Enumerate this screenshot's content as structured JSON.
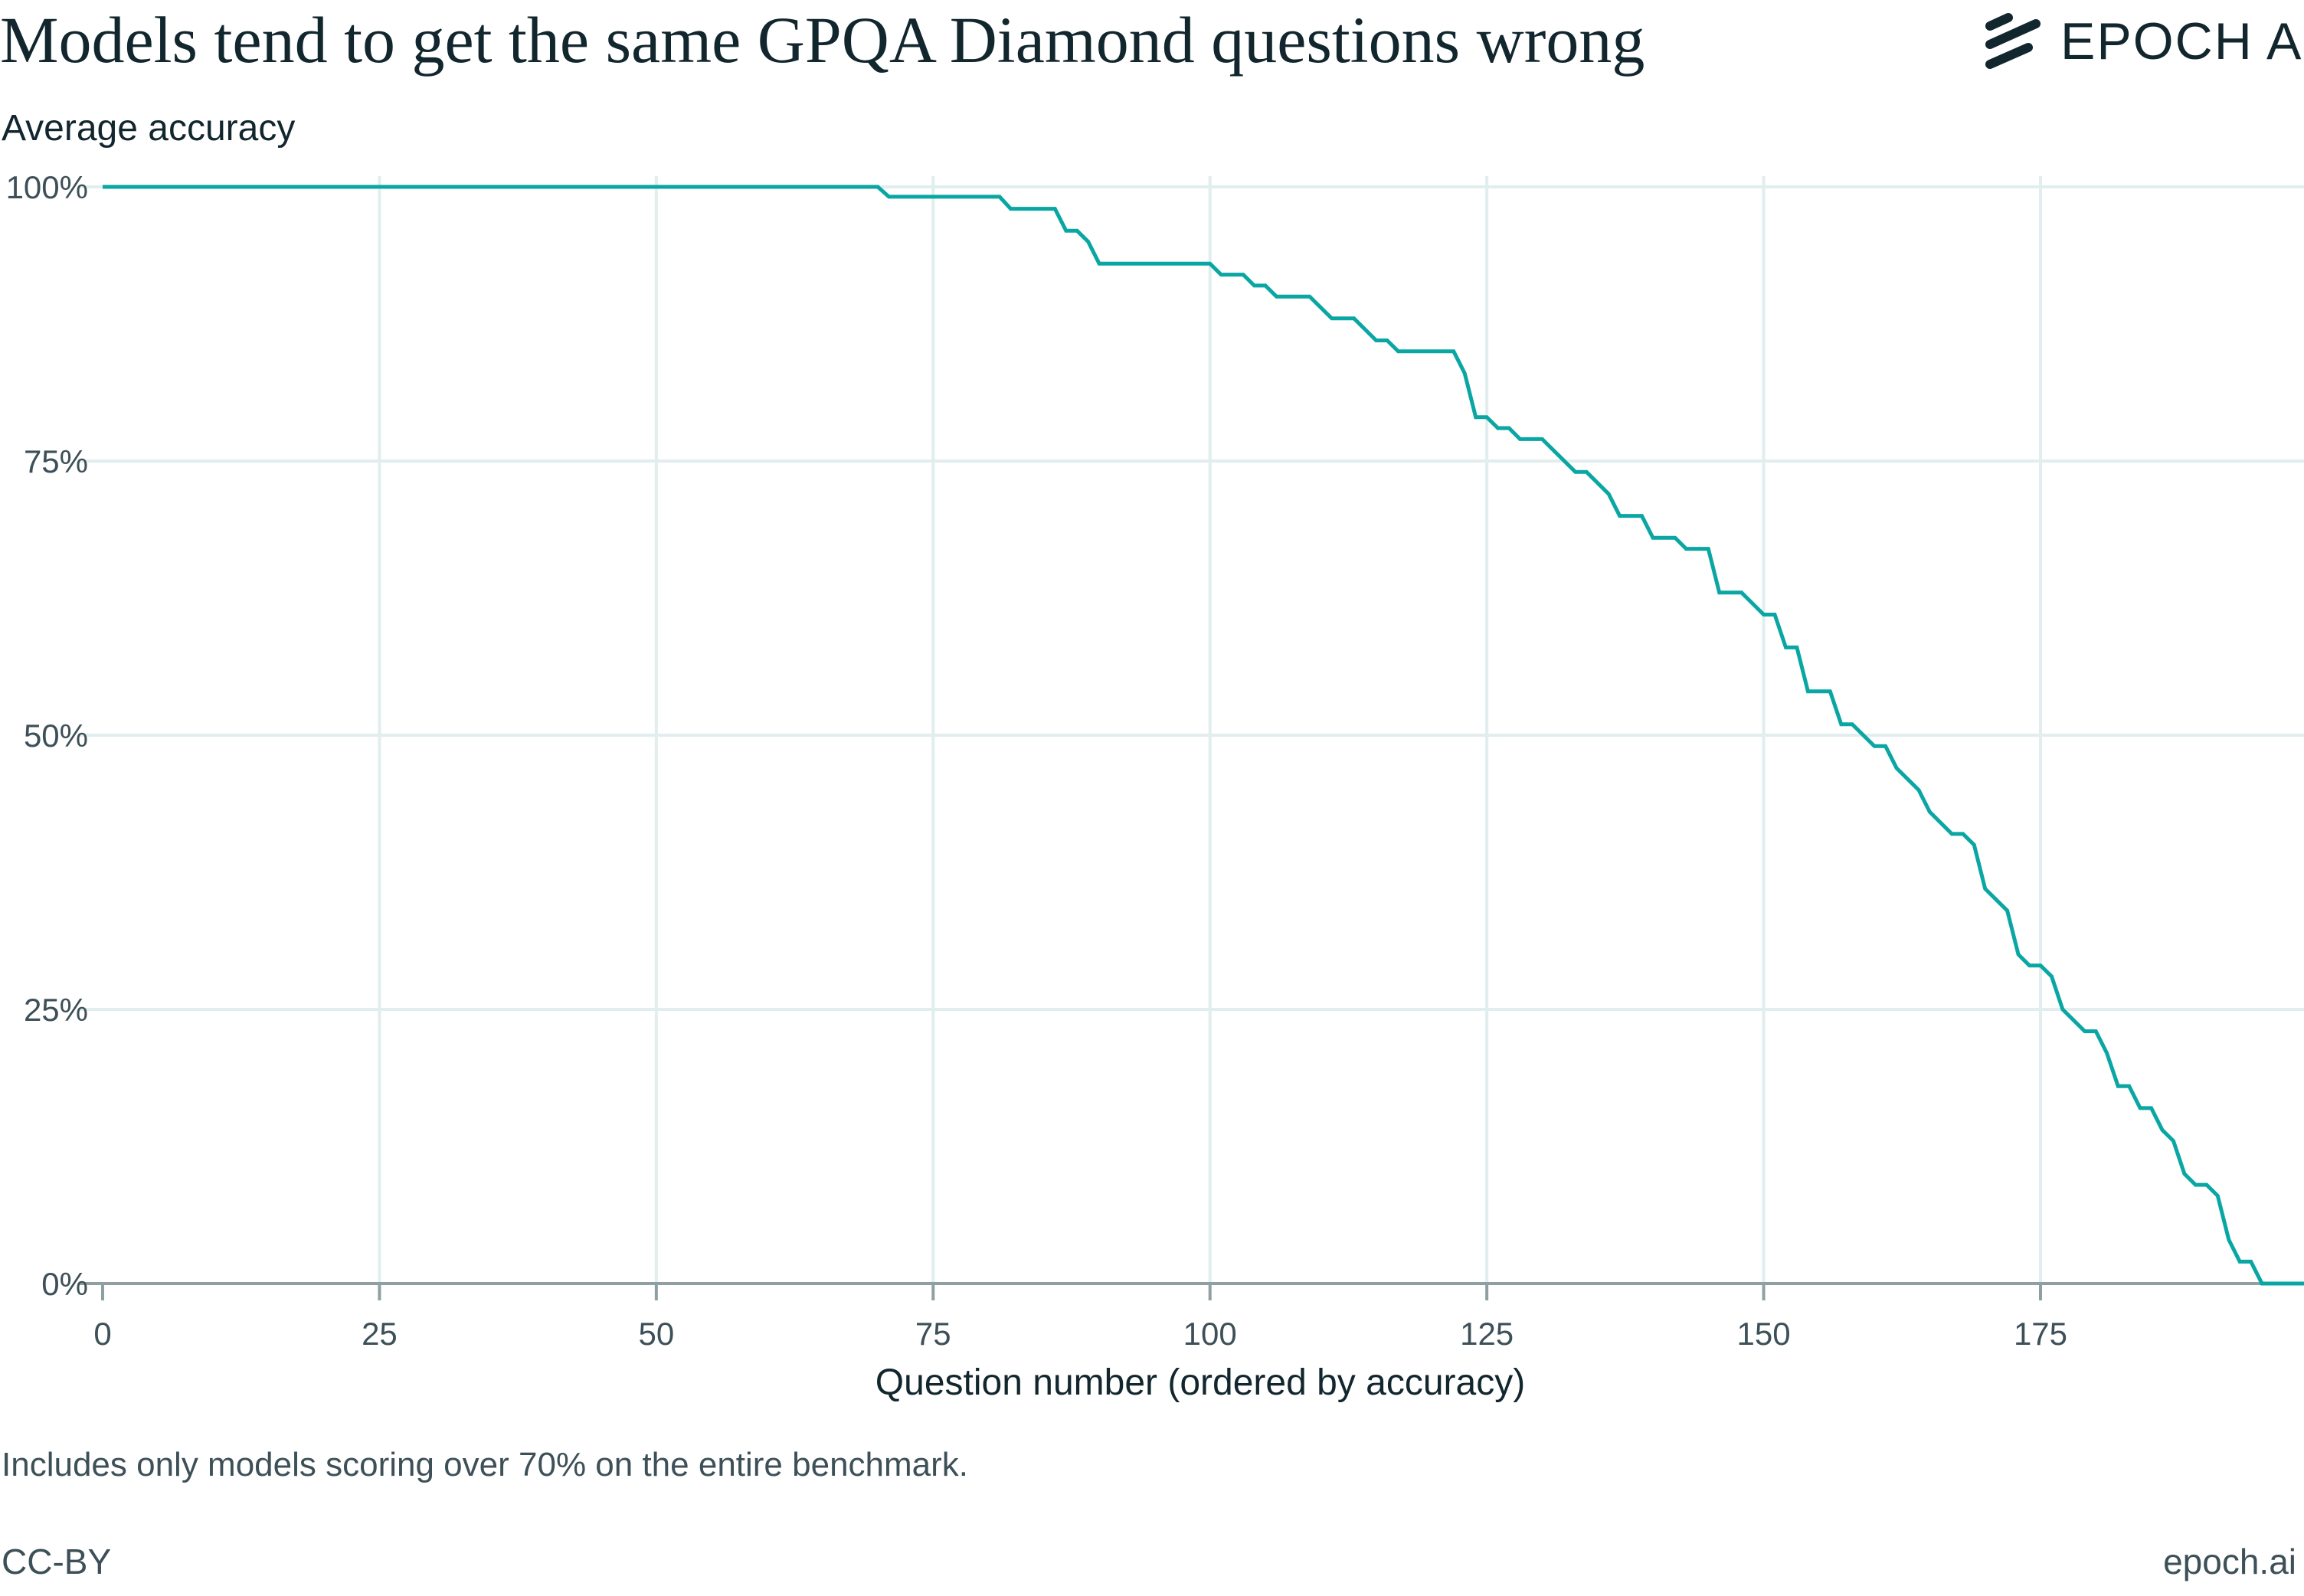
{
  "title": "Models tend to get the same GPQA Diamond questions wrong",
  "brand": {
    "name": "EPOCH AI",
    "logo_icon": "epoch-stripes-icon"
  },
  "footer": {
    "note": "Includes only models scoring over 70% on the entire benchmark.",
    "license": "CC-BY",
    "site": "epoch.ai"
  },
  "colors": {
    "line": "#0aa6a4",
    "grid": "#e2eded",
    "axis": "#8fa0a5",
    "text": "#12262e"
  },
  "chart_data": {
    "type": "line",
    "title": "Models tend to get the same GPQA Diamond questions wrong",
    "xlabel": "Question number (ordered by accuracy)",
    "ylabel": "Average accuracy",
    "xlim": [
      0,
      199
    ],
    "ylim": [
      0,
      100
    ],
    "grid": true,
    "x_ticks": [
      0,
      25,
      50,
      75,
      100,
      125,
      150,
      175
    ],
    "x_tick_labels": [
      "0",
      "25",
      "50",
      "75",
      "100",
      "125",
      "150",
      "175"
    ],
    "y_ticks": [
      0,
      25,
      50,
      75,
      100
    ],
    "y_tick_labels": [
      "0%",
      "25%",
      "50%",
      "75%",
      "100%"
    ],
    "series": [
      {
        "points": [
          [
            0,
            100
          ],
          [
            70,
            100
          ],
          [
            71,
            99.1
          ],
          [
            81,
            99.1
          ],
          [
            82,
            98
          ],
          [
            86,
            98
          ],
          [
            87,
            96
          ],
          [
            88,
            96
          ],
          [
            89,
            95
          ],
          [
            90,
            93
          ],
          [
            100,
            93
          ],
          [
            101,
            92
          ],
          [
            103,
            92
          ],
          [
            104,
            91
          ],
          [
            105,
            91
          ],
          [
            106,
            90
          ],
          [
            109,
            90
          ],
          [
            111,
            88
          ],
          [
            113,
            88
          ],
          [
            115,
            86
          ],
          [
            116,
            86
          ],
          [
            117,
            85
          ],
          [
            122,
            85
          ],
          [
            123,
            83
          ],
          [
            124,
            79
          ],
          [
            125,
            79
          ],
          [
            126,
            78
          ],
          [
            127,
            78
          ],
          [
            128,
            77
          ],
          [
            130,
            77
          ],
          [
            133,
            74
          ],
          [
            134,
            74
          ],
          [
            136,
            72
          ],
          [
            137,
            70
          ],
          [
            139,
            70
          ],
          [
            140,
            68
          ],
          [
            142,
            68
          ],
          [
            143,
            67
          ],
          [
            145,
            67
          ],
          [
            146,
            63
          ],
          [
            148,
            63
          ],
          [
            150,
            61
          ],
          [
            151,
            61
          ],
          [
            152,
            58
          ],
          [
            153,
            58
          ],
          [
            154,
            54
          ],
          [
            156,
            54
          ],
          [
            157,
            51
          ],
          [
            158,
            51
          ],
          [
            160,
            49
          ],
          [
            161,
            49
          ],
          [
            162,
            47
          ],
          [
            164,
            45
          ],
          [
            165,
            43
          ],
          [
            167,
            41
          ],
          [
            168,
            41
          ],
          [
            169,
            40
          ],
          [
            170,
            36
          ],
          [
            172,
            34
          ],
          [
            173,
            30
          ],
          [
            174,
            29
          ],
          [
            175,
            29
          ],
          [
            176,
            28
          ],
          [
            177,
            25
          ],
          [
            179,
            23
          ],
          [
            180,
            23
          ],
          [
            181,
            21
          ],
          [
            182,
            18
          ],
          [
            183,
            18
          ],
          [
            184,
            16
          ],
          [
            185,
            16
          ],
          [
            186,
            14
          ],
          [
            187,
            13
          ],
          [
            188,
            10
          ],
          [
            189,
            9
          ],
          [
            190,
            9
          ],
          [
            191,
            8
          ],
          [
            192,
            4
          ],
          [
            193,
            2
          ],
          [
            194,
            2
          ],
          [
            195,
            0
          ],
          [
            199,
            0
          ]
        ]
      }
    ]
  }
}
